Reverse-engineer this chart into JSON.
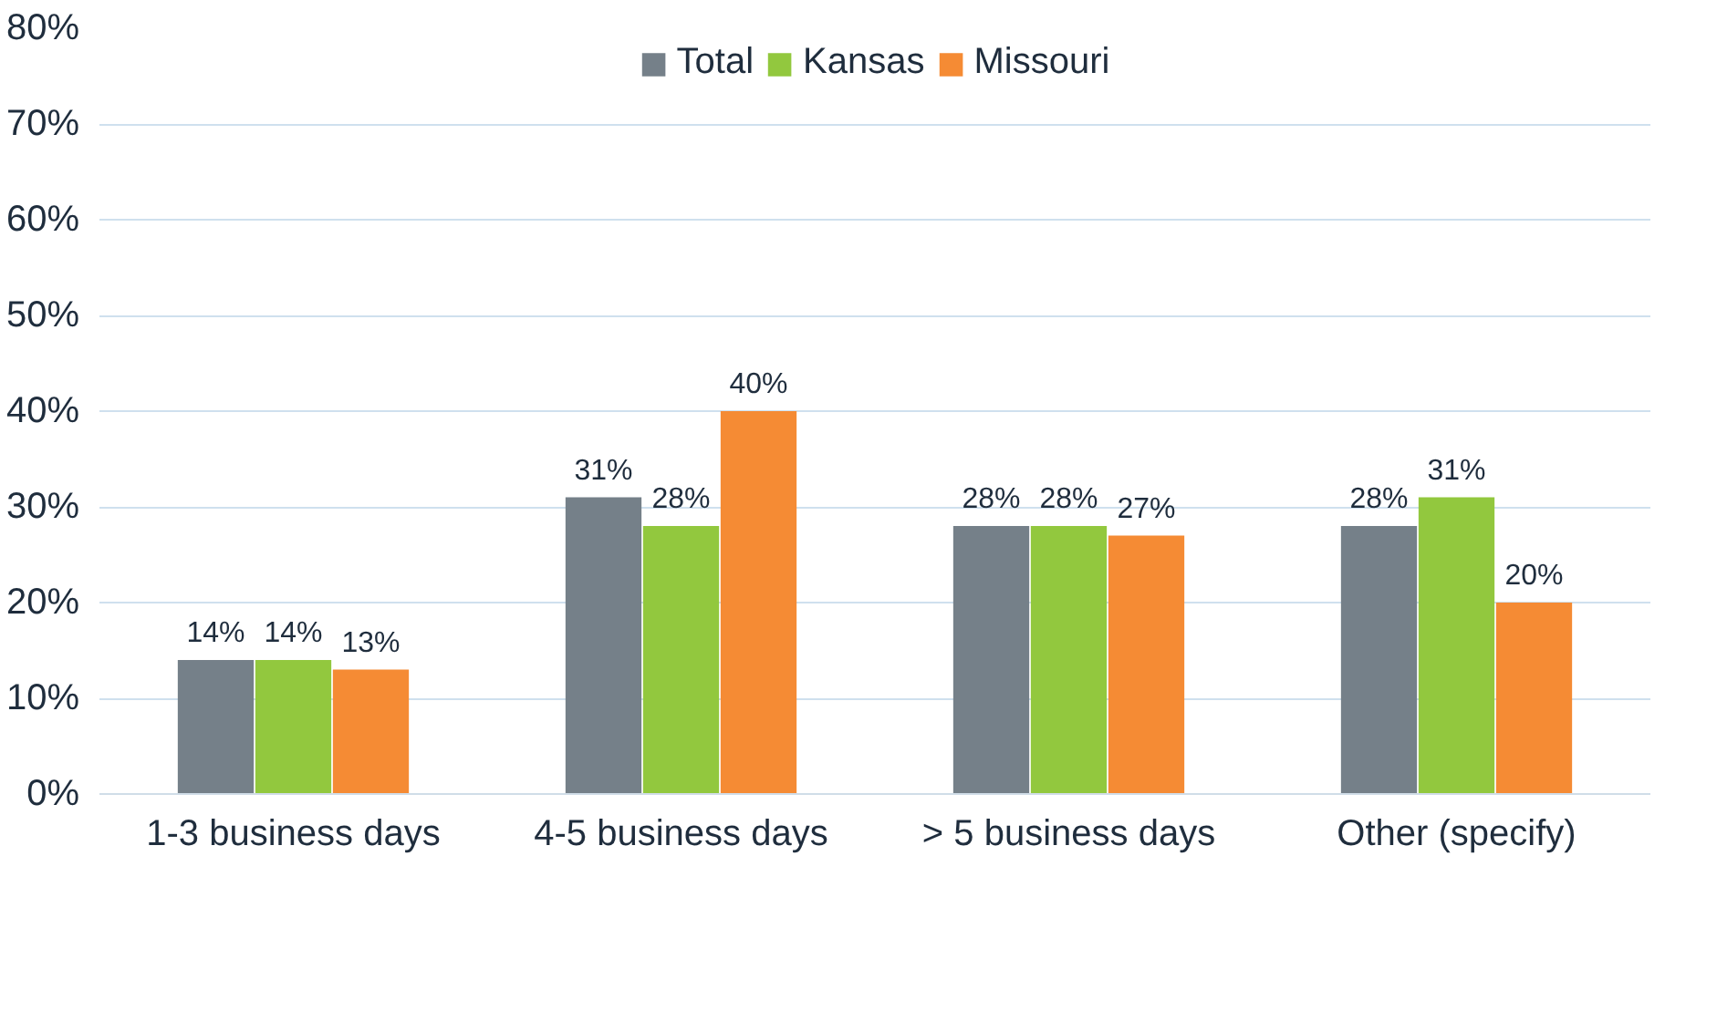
{
  "chart_data": {
    "type": "bar",
    "categories": [
      "1-3 business days",
      "4-5 business days",
      "> 5 business days",
      "Other (specify)"
    ],
    "series": [
      {
        "name": "Total",
        "color": "#758089",
        "values": [
          14,
          31,
          28,
          28
        ],
        "value_labels": [
          "14%",
          "31%",
          "28%",
          "28%"
        ]
      },
      {
        "name": "Kansas",
        "color": "#92c83e",
        "values": [
          14,
          28,
          28,
          31
        ],
        "value_labels": [
          "14%",
          "28%",
          "28%",
          "31%"
        ]
      },
      {
        "name": "Missouri",
        "color": "#f58b34",
        "values": [
          13,
          40,
          27,
          20
        ],
        "value_labels": [
          "13%",
          "40%",
          "27%",
          "20%"
        ]
      }
    ],
    "ylim": [
      0,
      80
    ],
    "yticks": [
      {
        "value": 0,
        "label": "0%"
      },
      {
        "value": 10,
        "label": "10%"
      },
      {
        "value": 20,
        "label": "20%"
      },
      {
        "value": 30,
        "label": "30%"
      },
      {
        "value": 40,
        "label": "40%"
      },
      {
        "value": 50,
        "label": "50%"
      },
      {
        "value": 60,
        "label": "60%"
      },
      {
        "value": 70,
        "label": "70%"
      },
      {
        "value": 80,
        "label": "80%"
      }
    ],
    "grid": "y",
    "legend": "top"
  }
}
